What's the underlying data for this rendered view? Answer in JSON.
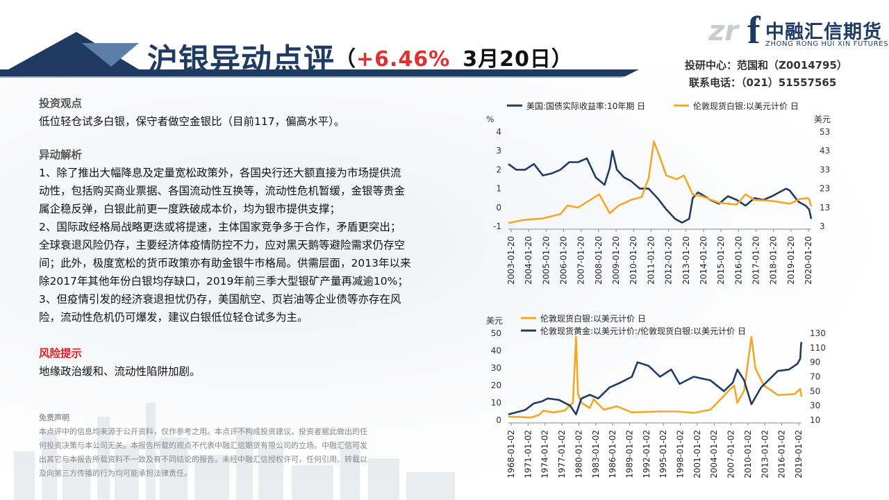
{
  "header": {
    "title_main": "沪银异动点评",
    "title_paren_open": "（",
    "title_change": "+6.46%",
    "title_date": "3月20日",
    "title_paren_close": "）",
    "logo_zr": "zr",
    "logo_f": "f",
    "logo_cn": "中融汇信期货",
    "logo_en": "ZHONG RONG HUI XIN FUTURES",
    "contact_line1": "投研中心：范国和（Z0014795）",
    "contact_line2": "联系电话：（021）51557565"
  },
  "content": {
    "view_title": "投资观点",
    "view_text": "低位轻仓试多白银，保守者做空金银比（目前117，偏高水平）。",
    "analysis_title": "异动解析",
    "analysis_lines": [
      "1、除了推出大幅降息及定量宽松政策外，各国央行还大额直接为市场提供流",
      "动性，包括购买商业票据、各国流动性互换等，流动性危机暂缓，金银等贵金",
      "属企稳反弹，白银此前更一度跌破成本价，均为银市提供支撑；",
      "2、国际政经格局战略更迭或将提速，主体国家竞争多于合作，矛盾更突出；",
      "全球衰退风险仍存，主要经济体疫情防控不力，应对黑天鹅等避险需求仍存空",
      "间；此外，极度宽松的货币政策亦有助金银牛市格局。供需层面，2013年以来",
      "除2017年其他年份白银均存缺口，2019年前三季大型银矿产量再减逾10%；",
      "3、但疫情引发的经济衰退担忧仍存，美国航空、页岩油等企业债等亦存在风",
      "险，流动性危机仍可爆发，建议白银低位轻仓试多为主。"
    ],
    "risk_title": "风险提示",
    "risk_text": "地缘政治缓和、流动性陷阱加剧。",
    "disclaimer_title": "免责声明",
    "disclaimer_lines": [
      "本点评中的信息均来源于公开资料，仅作参考之用。本点评不构成投资建议，投资者据此做出的任",
      "何投资决策与本公司无关。本报告所载的观点不代表中融汇信期货有限公司的立场。中融汇信可发",
      "出其它与本报告所载资料不一致及有不同结论的报告。未经中融汇信授权许可，任何引用、转载以",
      "及向第三方传播的行为均可能承担法律责任。"
    ]
  },
  "colors": {
    "navy": "#1f3b63",
    "orange": "#f5a623",
    "red": "#e02020"
  },
  "chart_data": [
    {
      "type": "line",
      "legend": [
        "美国:国债实际收益率:10年期 日",
        "伦敦现货白银:以美元计价 日"
      ],
      "y_left_unit": "%",
      "y_right_unit": "美元",
      "y_left_ticks": [
        "4",
        "3",
        "2",
        "1",
        "0",
        "-1"
      ],
      "y_right_ticks": [
        "53",
        "43",
        "33",
        "23",
        "13",
        "3"
      ],
      "y_left_range": [
        -1,
        4
      ],
      "y_right_range": [
        3,
        53
      ],
      "x_ticks": [
        "2003-01-20",
        "2004-01-20",
        "2005-01-20",
        "2006-01-20",
        "2007-01-20",
        "2008-01-20",
        "2009-01-20",
        "2010-01-20",
        "2011-01-20",
        "2012-01-20",
        "2013-01-20",
        "2014-01-20",
        "2015-01-20",
        "2016-01-20",
        "2017-01-20",
        "2018-01-20",
        "2019-01-20",
        "2020-01-20"
      ],
      "x_range": [
        2003.05,
        2020.22
      ],
      "series": [
        {
          "name": "美国:国债实际收益率:10年期 日",
          "axis": "left",
          "color": "#1f3b63",
          "x": [
            2003.05,
            2003.5,
            2004.0,
            2004.5,
            2005.0,
            2005.5,
            2006.0,
            2006.5,
            2007.0,
            2007.5,
            2008.0,
            2008.5,
            2008.8,
            2008.95,
            2009.2,
            2009.6,
            2010.0,
            2010.5,
            2011.0,
            2011.5,
            2012.0,
            2012.5,
            2012.9,
            2013.3,
            2013.5,
            2013.8,
            2014.0,
            2014.5,
            2015.0,
            2015.5,
            2016.0,
            2016.5,
            2017.0,
            2017.5,
            2018.0,
            2018.8,
            2019.0,
            2019.5,
            2019.9,
            2020.1,
            2020.22
          ],
          "y": [
            2.3,
            2.0,
            2.0,
            2.3,
            1.7,
            1.8,
            2.0,
            2.4,
            2.4,
            2.6,
            1.6,
            1.2,
            2.1,
            3.0,
            2.0,
            1.6,
            1.4,
            1.0,
            1.0,
            0.5,
            -0.1,
            -0.6,
            -0.8,
            -0.6,
            0.5,
            0.8,
            0.7,
            0.4,
            0.2,
            0.6,
            0.4,
            0.1,
            0.5,
            0.4,
            0.6,
            1.0,
            0.9,
            0.3,
            0.1,
            -0.1,
            -0.6
          ]
        },
        {
          "name": "伦敦现货白银:以美元计价 日",
          "axis": "right",
          "color": "#f5a623",
          "x": [
            2003.05,
            2004.0,
            2005.0,
            2006.0,
            2006.4,
            2007.0,
            2008.2,
            2008.8,
            2009.3,
            2010.0,
            2010.6,
            2011.0,
            2011.3,
            2011.7,
            2012.0,
            2012.6,
            2013.0,
            2013.5,
            2014.0,
            2015.0,
            2016.0,
            2016.5,
            2017.0,
            2018.0,
            2019.0,
            2019.6,
            2020.0,
            2020.1,
            2020.22
          ],
          "y": [
            4.8,
            6.5,
            7.2,
            9.5,
            14.0,
            13.0,
            20.0,
            10.0,
            14.0,
            17.0,
            18.5,
            28.5,
            48.0,
            38.0,
            30.0,
            28.0,
            30.0,
            20.0,
            19.0,
            15.5,
            14.5,
            20.0,
            17.0,
            16.5,
            15.0,
            17.5,
            18.0,
            17.5,
            13.5
          ]
        }
      ]
    },
    {
      "type": "line",
      "legend": [
        "伦敦现货白银:以美元计价 日",
        "伦敦现货黄金:以美元计价:/伦敦现货白银:以美元计价 日"
      ],
      "y_left_unit": "美元",
      "y_left_ticks": [
        "50",
        "40",
        "30",
        "20",
        "10",
        "0"
      ],
      "y_right_ticks": [
        "130",
        "110",
        "90",
        "70",
        "50",
        "30",
        "10"
      ],
      "y_left_range": [
        0,
        50
      ],
      "y_right_range": [
        10,
        130
      ],
      "x_ticks": [
        "1968-01-02",
        "1971-01-02",
        "1974-01-02",
        "1977-01-02",
        "1980-01-02",
        "1983-01-02",
        "1986-01-02",
        "1989-01-02",
        "1992-01-02",
        "1995-01-02",
        "1998-01-02",
        "2001-01-02",
        "2004-01-02",
        "2007-01-02",
        "2010-01-02",
        "2013-01-02",
        "2016-01-02",
        "2019-01-02"
      ],
      "x_range": [
        1968.0,
        2020.22
      ],
      "series": [
        {
          "name": "伦敦现货白银:以美元计价 日",
          "axis": "left",
          "color": "#f5a623",
          "x": [
            1968.0,
            1970.0,
            1972.0,
            1973.5,
            1974.2,
            1976.0,
            1978.0,
            1979.5,
            1980.05,
            1980.4,
            1981.0,
            1982.5,
            1983.2,
            1985.0,
            1987.3,
            1990.0,
            1995.0,
            1998.0,
            2001.0,
            2004.0,
            2006.4,
            2008.2,
            2008.8,
            2010.0,
            2011.3,
            2012.0,
            2013.5,
            2016.0,
            2019.0,
            2020.0,
            2020.22
          ],
          "y": [
            2.0,
            1.8,
            1.5,
            3.0,
            5.5,
            4.5,
            5.5,
            10.0,
            48.0,
            15.0,
            10.0,
            7.0,
            12.0,
            6.0,
            8.0,
            4.5,
            5.0,
            5.0,
            4.2,
            6.0,
            14.0,
            20.0,
            10.0,
            17.0,
            48.0,
            30.0,
            20.0,
            14.5,
            15.0,
            18.0,
            13.5
          ]
        },
        {
          "name": "伦敦现货黄金:以美元计价:/伦敦现货白银:以美元计价 日",
          "axis": "right",
          "color": "#1f3b63",
          "x": [
            1968.0,
            1969.0,
            1971.0,
            1972.5,
            1974.0,
            1975.0,
            1977.0,
            1979.0,
            1980.05,
            1981.0,
            1982.5,
            1984.0,
            1986.0,
            1988.0,
            1990.0,
            1991.0,
            1993.0,
            1995.0,
            1997.0,
            1998.5,
            2001.0,
            2004.0,
            2006.4,
            2008.0,
            2008.8,
            2010.0,
            2011.3,
            2013.0,
            2016.0,
            2018.0,
            2019.5,
            2020.0,
            2020.15,
            2020.22
          ],
          "y": [
            18,
            20,
            24,
            33,
            36,
            40,
            38,
            30,
            18,
            40,
            45,
            40,
            55,
            62,
            70,
            90,
            85,
            70,
            80,
            60,
            70,
            65,
            50,
            62,
            80,
            65,
            32,
            55,
            78,
            80,
            88,
            95,
            115,
            118
          ]
        }
      ]
    }
  ]
}
